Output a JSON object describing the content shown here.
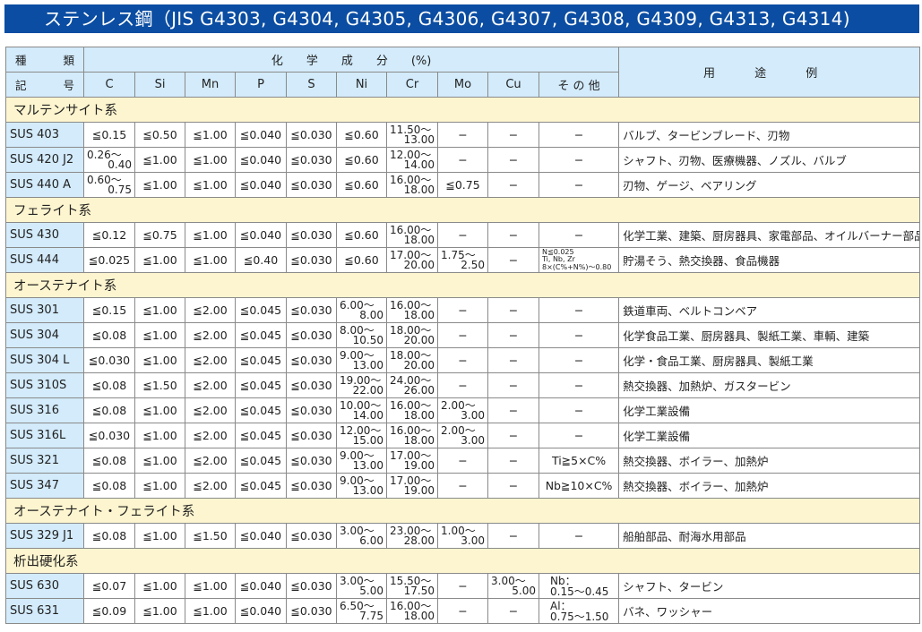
{
  "title": "ステンレス鋼（JIS G4303, G4304, G4305, G4306, G4307, G4308, G4309, G4313, G4314)",
  "header": {
    "kind_top": [
      "種",
      "類"
    ],
    "kind_bottom": [
      "記",
      "号"
    ],
    "chem": "化　　学　　成　　分　　(%)",
    "uses": "用 途 例",
    "columns": [
      "C",
      "Si",
      "Mn",
      "P",
      "S",
      "Ni",
      "Cr",
      "Mo",
      "Cu",
      "そ の 他"
    ]
  },
  "sections": [
    {
      "label": "マルテンサイト系",
      "rows": [
        {
          "name": "SUS 403",
          "cells": [
            "≦0.15",
            "≦0.50",
            "≦1.00",
            "≦0.040",
            "≦0.030",
            "≦0.60",
            [
              "11.50〜",
              "13.00"
            ],
            "−",
            "−",
            "−"
          ],
          "uses": "バルブ、タービンブレード、刃物"
        },
        {
          "name": "SUS 420 J2",
          "cells": [
            [
              "0.26〜",
              "0.40"
            ],
            "≦1.00",
            "≦1.00",
            "≦0.040",
            "≦0.030",
            "≦0.60",
            [
              "12.00〜",
              "14.00"
            ],
            "−",
            "−",
            "−"
          ],
          "uses": "シャフト、刃物、医療機器、ノズル、バルブ"
        },
        {
          "name": "SUS 440 A",
          "cells": [
            [
              "0.60〜",
              "0.75"
            ],
            "≦1.00",
            "≦1.00",
            "≦0.040",
            "≦0.030",
            "≦0.60",
            [
              "16.00〜",
              "18.00"
            ],
            "≦0.75",
            "−",
            "−"
          ],
          "uses": "刃物、ゲージ、ベアリング"
        }
      ]
    },
    {
      "label": "フェライト系",
      "rows": [
        {
          "name": "SUS 430",
          "cells": [
            "≦0.12",
            "≦0.75",
            "≦1.00",
            "≦0.040",
            "≦0.030",
            "≦0.60",
            [
              "16.00〜",
              "18.00"
            ],
            "−",
            "−",
            "−"
          ],
          "uses": "化学工業、建築、厨房器具、家電部品、オイルバーナー部品"
        },
        {
          "name": "SUS 444",
          "cells": [
            "≦0.025",
            "≦1.00",
            "≦1.00",
            "≦0.40",
            "≦0.030",
            "≦0.60",
            [
              "17.00〜",
              "20.00"
            ],
            [
              "1.75〜",
              "2.50"
            ],
            "−",
            {
              "small": [
                "N≦0.025",
                "Ti, Nb, Zr",
                "8×(C%+N%)〜0.80"
              ]
            }
          ],
          "uses": "貯湯そう、熱交換器、食品機器"
        }
      ]
    },
    {
      "label": "オーステナイト系",
      "rows": [
        {
          "name": "SUS 301",
          "cells": [
            "≦0.15",
            "≦1.00",
            "≦2.00",
            "≦0.045",
            "≦0.030",
            [
              "6.00〜",
              "8.00"
            ],
            [
              "16.00〜",
              "18.00"
            ],
            "−",
            "−",
            "−"
          ],
          "uses": "鉄道車両、ベルトコンベア"
        },
        {
          "name": "SUS 304",
          "cells": [
            "≦0.08",
            "≦1.00",
            "≦2.00",
            "≦0.045",
            "≦0.030",
            [
              "8.00〜",
              "10.50"
            ],
            [
              "18.00〜",
              "20.00"
            ],
            "−",
            "−",
            "−"
          ],
          "uses": "化学食品工業、厨房器具、製紙工業、車輌、建築"
        },
        {
          "name": "SUS 304 L",
          "cells": [
            "≦0.030",
            "≦1.00",
            "≦2.00",
            "≦0.045",
            "≦0.030",
            [
              "9.00〜",
              "13.00"
            ],
            [
              "18.00〜",
              "20.00"
            ],
            "−",
            "−",
            "−"
          ],
          "uses": "化学・食品工業、厨房器具、製紙工業"
        },
        {
          "name": "SUS 310S",
          "cells": [
            "≦0.08",
            "≦1.50",
            "≦2.00",
            "≦0.045",
            "≦0.030",
            [
              "19.00〜",
              "22.00"
            ],
            [
              "24.00〜",
              "26.00"
            ],
            "−",
            "−",
            "−"
          ],
          "uses": "熱交換器、加熱炉、ガスタービン"
        },
        {
          "name": "SUS 316",
          "cells": [
            "≦0.08",
            "≦1.00",
            "≦2.00",
            "≦0.045",
            "≦0.030",
            [
              "10.00〜",
              "14.00"
            ],
            [
              "16.00〜",
              "18.00"
            ],
            [
              "2.00〜",
              "3.00"
            ],
            "−",
            "−"
          ],
          "uses": "化学工業設備"
        },
        {
          "name": "SUS 316L",
          "cells": [
            "≦0.030",
            "≦1.00",
            "≦2.00",
            "≦0.045",
            "≦0.030",
            [
              "12.00〜",
              "15.00"
            ],
            [
              "16.00〜",
              "18.00"
            ],
            [
              "2.00〜",
              "3.00"
            ],
            "−",
            "−"
          ],
          "uses": "化学工業設備"
        },
        {
          "name": "SUS 321",
          "cells": [
            "≦0.08",
            "≦1.00",
            "≦2.00",
            "≦0.045",
            "≦0.030",
            [
              "9.00〜",
              "13.00"
            ],
            [
              "17.00〜",
              "19.00"
            ],
            "−",
            "−",
            "Ti≧5×C%"
          ],
          "uses": "熱交換器、ボイラー、加熱炉"
        },
        {
          "name": "SUS 347",
          "cells": [
            "≦0.08",
            "≦1.00",
            "≦2.00",
            "≦0.045",
            "≦0.030",
            [
              "9.00〜",
              "13.00"
            ],
            [
              "17.00〜",
              "19.00"
            ],
            "−",
            "−",
            "Nb≧10×C%"
          ],
          "uses": "熱交換器、ボイラー、加熱炉"
        }
      ]
    },
    {
      "label": "オーステナイト・フェライト系",
      "rows": [
        {
          "name": "SUS 329 J1",
          "cells": [
            "≦0.08",
            "≦1.00",
            "≦1.50",
            "≦0.040",
            "≦0.030",
            [
              "3.00〜",
              "6.00"
            ],
            [
              "23.00〜",
              "28.00"
            ],
            [
              "1.00〜",
              "3.00"
            ],
            "−",
            "−"
          ],
          "uses": "船舶部品、耐海水用部品"
        }
      ]
    },
    {
      "label": "析出硬化系",
      "rows": [
        {
          "name": "SUS 630",
          "cells": [
            "≦0.07",
            "≦1.00",
            "≦1.00",
            "≦0.040",
            "≦0.030",
            [
              "3.00〜",
              "5.00"
            ],
            [
              "15.50〜",
              "17.50"
            ],
            "−",
            [
              "3.00〜",
              "5.00"
            ],
            {
              "two": [
                "Nb：",
                "0.15〜0.45"
              ]
            }
          ],
          "uses": "シャフト、タービン"
        },
        {
          "name": "SUS 631",
          "cells": [
            "≦0.09",
            "≦1.00",
            "≦1.00",
            "≦0.040",
            "≦0.030",
            [
              "6.50〜",
              "7.75"
            ],
            [
              "16.00〜",
              "18.00"
            ],
            "−",
            "−",
            {
              "two": [
                "Al：",
                "0.75〜1.50"
              ]
            }
          ],
          "uses": "バネ、ワッシャー"
        }
      ]
    }
  ],
  "colors": {
    "title_bg": "#0b4da2",
    "header_bg": "#d3ebfb",
    "section_bg": "#fdf5cf"
  }
}
